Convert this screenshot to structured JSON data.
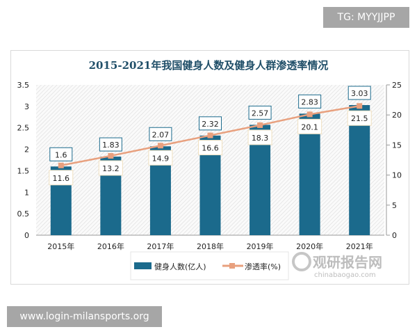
{
  "watermark_top": "TG: MYYJJPP",
  "watermark_bottom": "www.login-milansports.org",
  "logo": {
    "name": "观研报告网",
    "url": "chinabaogao.com"
  },
  "chart_data": {
    "type": "bar+line",
    "title": "2015-2021年我国健身人数及健身人群渗透率情况",
    "categories": [
      "2015年",
      "2016年",
      "2017年",
      "2018年",
      "2019年",
      "2020年",
      "2021年"
    ],
    "series": [
      {
        "name": "健身人数(亿人)",
        "type": "bar",
        "axis": "left",
        "color": "#1b6a8c",
        "values": [
          1.6,
          1.83,
          2.07,
          2.32,
          2.57,
          2.83,
          3.03
        ]
      },
      {
        "name": "渗透率(%)",
        "type": "line",
        "axis": "right",
        "color": "#e8a07e",
        "values": [
          11.6,
          13.2,
          14.9,
          16.6,
          18.3,
          20.1,
          21.5
        ]
      }
    ],
    "left_axis": {
      "ylim": [
        0,
        3.5
      ],
      "ticks": [
        "0",
        "0.5",
        "1",
        "1.5",
        "2",
        "2.5",
        "3",
        "3.5"
      ]
    },
    "right_axis": {
      "ylim": [
        0,
        25
      ],
      "ticks": [
        "0",
        "5",
        "10",
        "15",
        "20",
        "25"
      ]
    },
    "legend": "bottom",
    "background": "hatched"
  }
}
